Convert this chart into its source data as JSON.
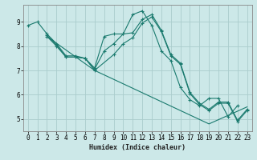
{
  "xlabel": "Humidex (Indice chaleur)",
  "ylabel": "",
  "background_color": "#cce8e8",
  "grid_color": "#aacccc",
  "line_color": "#1a7a6e",
  "xlim": [
    -0.5,
    23.5
  ],
  "ylim": [
    4.5,
    9.7
  ],
  "xticks": [
    0,
    1,
    2,
    3,
    4,
    5,
    6,
    7,
    8,
    9,
    10,
    11,
    12,
    13,
    14,
    15,
    16,
    17,
    18,
    19,
    20,
    21,
    22,
    23
  ],
  "yticks": [
    5,
    6,
    7,
    8,
    9
  ],
  "lines": [
    {
      "x": [
        0,
        1,
        2,
        3,
        4,
        5,
        6,
        7,
        8,
        9,
        10,
        11,
        12,
        13,
        14,
        15,
        16,
        17,
        18,
        19,
        20,
        21,
        22
      ],
      "y": [
        8.85,
        9.0,
        8.5,
        8.1,
        7.6,
        7.6,
        7.5,
        7.1,
        8.4,
        8.5,
        8.5,
        9.3,
        9.45,
        8.85,
        7.8,
        7.4,
        6.3,
        5.8,
        5.55,
        5.85,
        5.85,
        5.1,
        5.55
      ]
    },
    {
      "x": [
        2,
        3,
        4,
        5,
        6,
        7,
        8,
        9,
        10,
        11,
        12,
        13,
        14,
        15,
        16,
        17,
        18,
        19,
        20,
        21,
        22,
        23
      ],
      "y": [
        8.45,
        8.05,
        7.55,
        7.55,
        7.5,
        7.05,
        7.8,
        8.1,
        8.5,
        8.55,
        9.1,
        9.3,
        8.65,
        7.65,
        7.3,
        6.1,
        5.65,
        5.4,
        5.7,
        5.7,
        4.95,
        5.4
      ]
    },
    {
      "x": [
        2,
        3,
        4,
        5,
        6,
        7,
        9,
        10,
        11,
        12,
        13,
        14,
        15,
        16,
        17,
        18,
        19,
        20,
        21,
        22,
        23
      ],
      "y": [
        8.4,
        8.0,
        7.55,
        7.55,
        7.5,
        7.0,
        7.65,
        8.1,
        8.35,
        8.95,
        9.2,
        8.6,
        7.6,
        7.25,
        6.05,
        5.6,
        5.35,
        5.65,
        5.65,
        4.9,
        5.35
      ]
    },
    {
      "x": [
        2,
        7,
        19,
        23
      ],
      "y": [
        8.4,
        7.0,
        4.8,
        5.5
      ]
    }
  ]
}
